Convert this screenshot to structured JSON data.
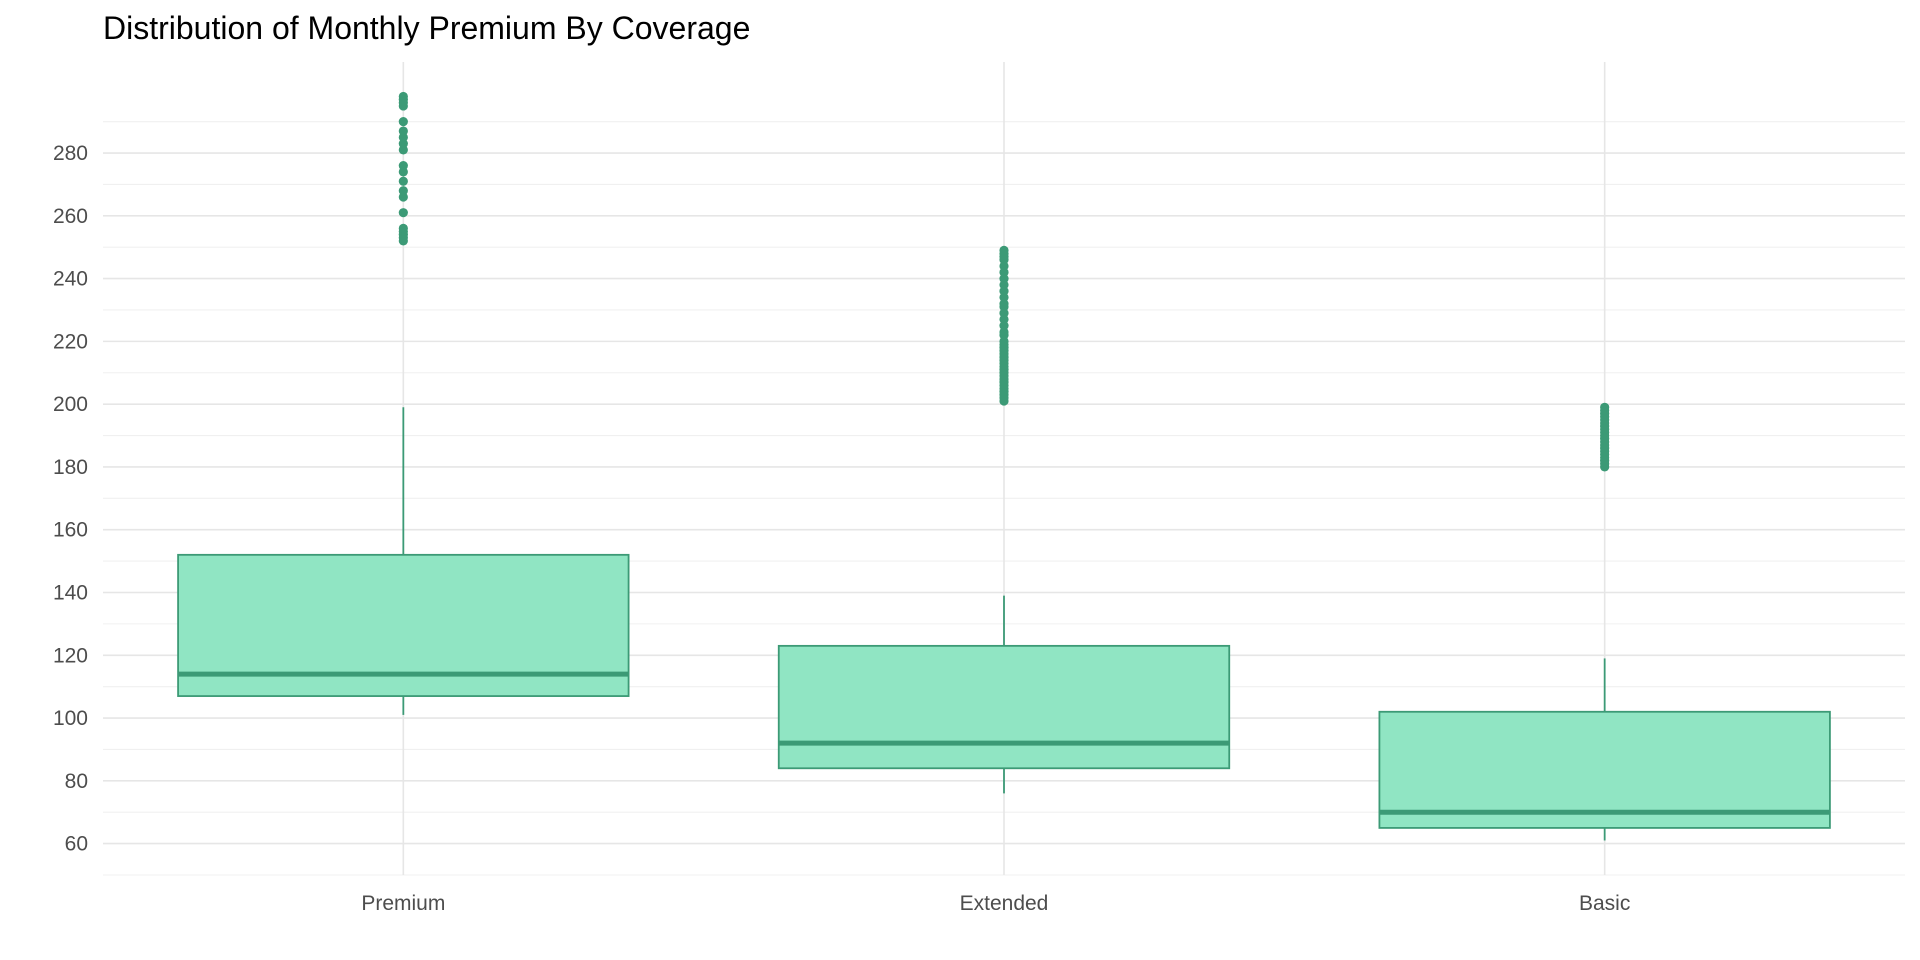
{
  "chart_data": {
    "type": "boxplot",
    "title": "Distribution of Monthly Premium By Coverage",
    "xlabel": "",
    "ylabel": "",
    "categories": [
      "Premium",
      "Extended",
      "Basic"
    ],
    "ylim": [
      50,
      309
    ],
    "yticks": [
      60,
      80,
      100,
      120,
      140,
      160,
      180,
      200,
      220,
      240,
      260,
      280
    ],
    "grid": true,
    "legend": "none",
    "colors": {
      "box_fill": "#90e5c3",
      "box_stroke": "#3c9a76",
      "point": "#3c9a76"
    },
    "boxes": [
      {
        "category": "Premium",
        "whisker_low": 101,
        "q1": 107,
        "median": 114,
        "q3": 152,
        "whisker_high": 199,
        "outliers": [
          252,
          253,
          254,
          255,
          256,
          261,
          266,
          268,
          271,
          274,
          276,
          281,
          283,
          285,
          287,
          290,
          295,
          296,
          297,
          298
        ]
      },
      {
        "category": "Extended",
        "whisker_low": 76,
        "q1": 84,
        "median": 92,
        "q3": 123,
        "whisker_high": 139,
        "outliers": [
          201,
          202,
          203,
          204,
          205,
          206,
          207,
          208,
          209,
          210,
          211,
          212,
          213,
          214,
          215,
          216,
          217,
          218,
          219,
          220,
          222,
          223,
          225,
          227,
          229,
          231,
          232,
          234,
          236,
          238,
          240,
          242,
          244,
          246,
          247,
          248,
          249
        ]
      },
      {
        "category": "Basic",
        "whisker_low": 61,
        "q1": 65,
        "median": 70,
        "q3": 102,
        "whisker_high": 119,
        "outliers": [
          180,
          181,
          182,
          183,
          184,
          185,
          186,
          187,
          188,
          189,
          190,
          191,
          192,
          193,
          194,
          195,
          196,
          197,
          198,
          199
        ]
      }
    ]
  }
}
